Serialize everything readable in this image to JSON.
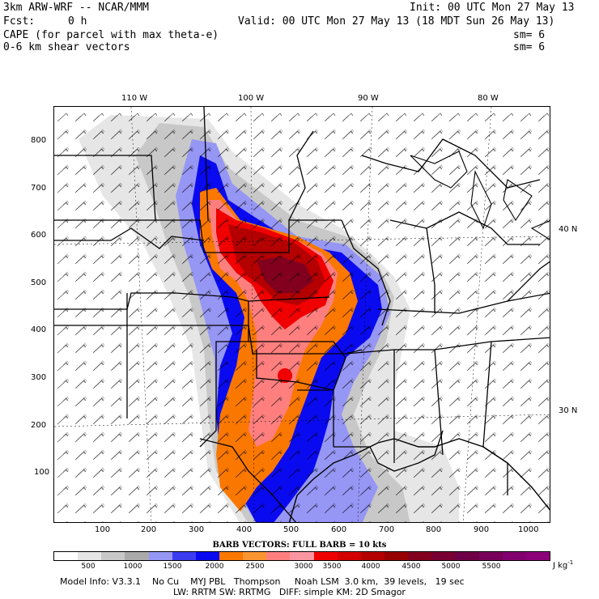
{
  "header": {
    "model_line": "3km ARW-WRF -- NCAR/MMM",
    "init_line": "Init: 00 UTC Mon 27 May 13",
    "fcst_label": "Fcst:",
    "fcst_value": "0 h",
    "valid_line": "Valid: 00 UTC Mon 27 May 13 (18 MDT Sun 26 May 13)",
    "field1": "CAPE (for parcel with max theta-e)",
    "field1_smooth": "sm= 6",
    "field2": "0-6 km shear vectors",
    "field2_smooth": "sm= 6"
  },
  "axes": {
    "lon_labels": [
      "110 W",
      "100 W",
      "90 W",
      "80 W"
    ],
    "lat_labels": [
      "40 N",
      "30 N"
    ],
    "x_ticks": [
      "100",
      "200",
      "300",
      "400",
      "500",
      "600",
      "700",
      "800",
      "900",
      "1000"
    ],
    "y_ticks": [
      "800",
      "700",
      "600",
      "500",
      "400",
      "300",
      "200",
      "100"
    ]
  },
  "legend": {
    "barb_text": "BARB VECTORS:  FULL BARB = 10 kts",
    "labels": [
      "500",
      "1000",
      "1500",
      "2000",
      "2500",
      "3000",
      "3500",
      "4000",
      "4500",
      "5000",
      "5500"
    ],
    "units": "J kg",
    "units_exp": "-1",
    "colors": [
      "#ffffff",
      "#e6e6e6",
      "#c8c8c8",
      "#aaaaaa",
      "#9696f5",
      "#3c3cf0",
      "#0a0af0",
      "#fa7800",
      "#fa9632",
      "#ff7f7f",
      "#fa96a0",
      "#f00000",
      "#d20000",
      "#b40000",
      "#960000",
      "#82001e",
      "#780032",
      "#6e0046",
      "#78005a",
      "#82006e",
      "#8c0078"
    ]
  },
  "footer": {
    "line1": "Model Info: V3.3.1    No Cu    MYJ PBL   Thompson     Noah LSM  3.0 km,  39 levels,   19 sec",
    "line2": "LW: RRTM SW: RRTMG   DIFF: simple KM: 2D Smagor"
  }
}
